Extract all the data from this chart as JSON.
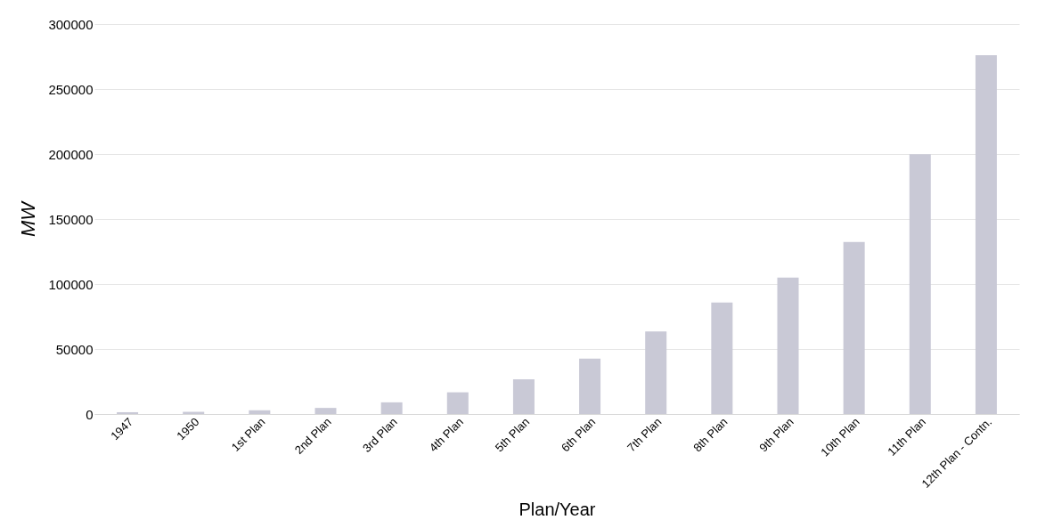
{
  "chart_data": {
    "type": "bar",
    "xlabel": "Plan/Year",
    "ylabel": "MW",
    "categories": [
      "1947",
      "1950",
      "1st Plan",
      "2nd Plan",
      "3rd Plan",
      "4th Plan",
      "5th Plan",
      "6th Plan",
      "7th Plan",
      "8th Plan",
      "9th Plan",
      "10th Plan",
      "11th Plan",
      "12th Plan - Contn."
    ],
    "values": [
      1400,
      1700,
      2900,
      4700,
      9000,
      16700,
      26700,
      42600,
      63600,
      85800,
      105000,
      132300,
      199900,
      276000
    ],
    "color": "#c9c9d6",
    "ylim": [
      0,
      300000
    ],
    "yticks": [
      0,
      50000,
      100000,
      150000,
      200000,
      250000,
      300000
    ],
    "grid": "y"
  }
}
